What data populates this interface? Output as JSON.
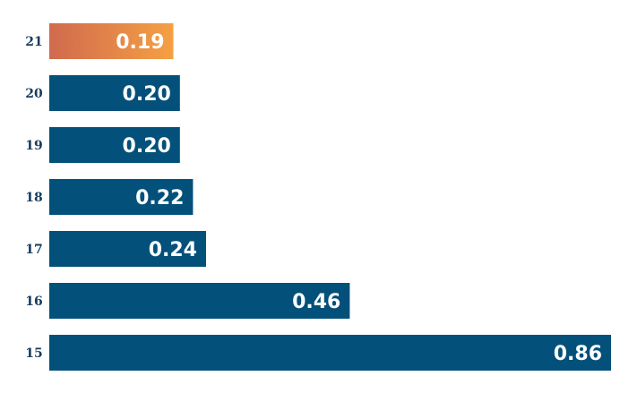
{
  "chart_data": {
    "type": "bar",
    "orientation": "horizontal",
    "categories": [
      "21",
      "20",
      "19",
      "18",
      "17",
      "16",
      "15"
    ],
    "values": [
      0.19,
      0.2,
      0.2,
      0.22,
      0.24,
      0.46,
      0.86
    ],
    "value_labels": [
      "0.19",
      "0.20",
      "0.20",
      "0.22",
      "0.24",
      "0.46",
      "0.86"
    ],
    "highlight_category": "21",
    "xlim": [
      0,
      0.86
    ],
    "grid": false,
    "legend": "none",
    "title": "",
    "xlabel": "",
    "ylabel": ""
  },
  "colors": {
    "bar": "#03507a",
    "highlight_start": "#d06a4e",
    "highlight_end": "#f5a044",
    "category_text": "#163c5e",
    "value_text": "#ffffff",
    "background": "#ffffff"
  }
}
